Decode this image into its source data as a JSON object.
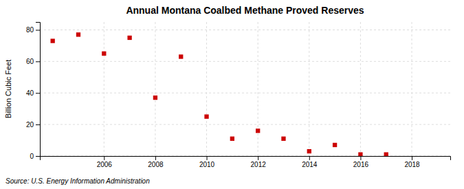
{
  "chart_data": {
    "type": "scatter",
    "title": "Annual Montana Coalbed Methane Proved Reserves",
    "ylabel": "Billion Cubic Feet",
    "source": "Source: U.S. Energy Information Administration",
    "x": [
      2004,
      2005,
      2006,
      2007,
      2008,
      2009,
      2010,
      2011,
      2012,
      2013,
      2014,
      2015,
      2016,
      2017
    ],
    "values": [
      73,
      77,
      65,
      75,
      37,
      63,
      25,
      11,
      16,
      11,
      3,
      7,
      1,
      1
    ],
    "xlim": [
      2003.5,
      2019.5
    ],
    "ylim": [
      0,
      85
    ],
    "xticks": [
      2006,
      2008,
      2010,
      2012,
      2014,
      2016,
      2018
    ],
    "yticks": [
      0,
      20,
      40,
      60,
      80
    ],
    "color": "#cc0000",
    "marker": "square",
    "grid": true
  }
}
